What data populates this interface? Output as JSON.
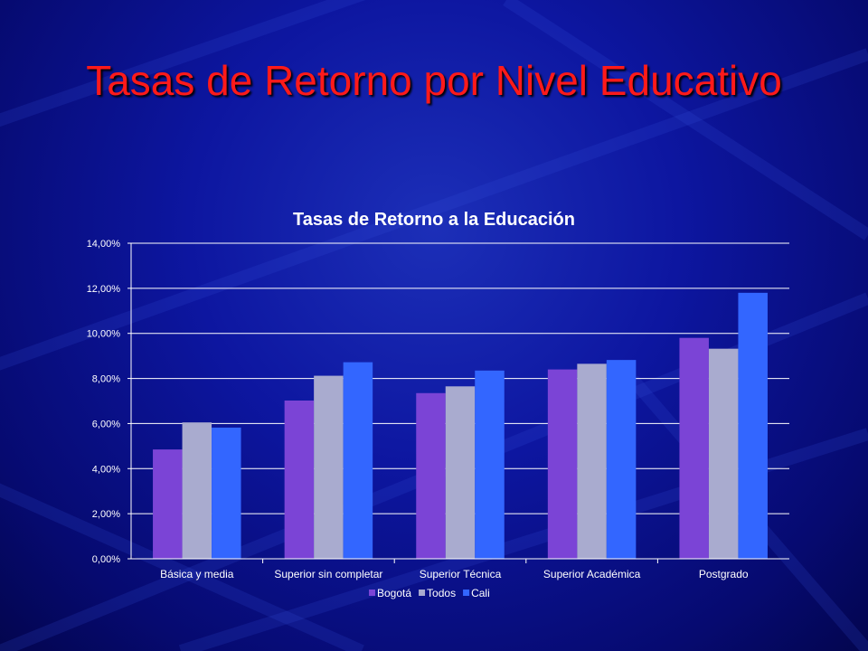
{
  "slide": {
    "title": "Tasas de Retorno por Nivel Educativo"
  },
  "chart_data": {
    "type": "bar",
    "title": "Tasas de Retorno a la Educación",
    "xlabel": "",
    "ylabel": "",
    "ylim": [
      0,
      0.14
    ],
    "ytick_labels": [
      "0,00%",
      "2,00%",
      "4,00%",
      "6,00%",
      "8,00%",
      "10,00%",
      "12,00%",
      "14,00%"
    ],
    "categories": [
      "Básica y media",
      "Superior sin completar",
      "Superior Técnica",
      "Superior Académica",
      "Postgrado"
    ],
    "series": [
      {
        "name": "Bogotá",
        "color": "#7b44d6",
        "values": [
          0.0485,
          0.0702,
          0.0735,
          0.084,
          0.098
        ]
      },
      {
        "name": "Todos",
        "color": "#a9abcf",
        "values": [
          0.0605,
          0.0812,
          0.0765,
          0.0865,
          0.0932
        ]
      },
      {
        "name": "Cali",
        "color": "#3366ff",
        "values": [
          0.0582,
          0.0872,
          0.0835,
          0.0882,
          0.118
        ]
      }
    ],
    "grid": true,
    "legend": "bottom"
  }
}
